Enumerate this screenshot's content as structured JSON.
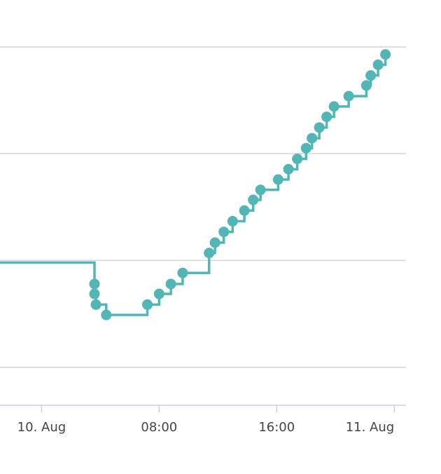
{
  "chart_data": {
    "type": "line",
    "step": true,
    "markers": true,
    "legend": "none",
    "grid": "horizontal",
    "color": "#52b6b6",
    "x_ticks": [
      {
        "hour": 0,
        "label": "10. Aug"
      },
      {
        "hour": 8,
        "label": "08:00"
      },
      {
        "hour": 16,
        "label": "16:00"
      },
      {
        "hour": 24,
        "label": "11. Aug"
      }
    ],
    "xlim": [
      -2.83,
      24.8
    ],
    "ylim": [
      -10.65,
      89.9
    ],
    "grid_y": [
      0,
      30,
      60,
      89.9
    ],
    "start": {
      "hour": -2.83,
      "y": 29.4
    },
    "series": [
      {
        "points": [
          {
            "x": 3.6,
            "y": 23.4
          },
          {
            "x": 3.6,
            "y": 20.6
          },
          {
            "x": 3.7,
            "y": 17.6
          },
          {
            "x": 4.4,
            "y": 14.7
          },
          {
            "x": 7.2,
            "y": 17.6
          },
          {
            "x": 8.0,
            "y": 20.6
          },
          {
            "x": 8.8,
            "y": 23.4
          },
          {
            "x": 9.6,
            "y": 26.5
          },
          {
            "x": 11.4,
            "y": 32.1
          },
          {
            "x": 11.8,
            "y": 35.0
          },
          {
            "x": 12.4,
            "y": 38.0
          },
          {
            "x": 13.0,
            "y": 41.0
          },
          {
            "x": 13.8,
            "y": 44.0
          },
          {
            "x": 14.4,
            "y": 47.0
          },
          {
            "x": 14.9,
            "y": 49.8
          },
          {
            "x": 16.1,
            "y": 52.7
          },
          {
            "x": 16.8,
            "y": 55.6
          },
          {
            "x": 17.4,
            "y": 58.5
          },
          {
            "x": 18.0,
            "y": 61.5
          },
          {
            "x": 18.4,
            "y": 64.3
          },
          {
            "x": 18.9,
            "y": 67.3
          },
          {
            "x": 19.4,
            "y": 70.3
          },
          {
            "x": 19.9,
            "y": 73.2
          },
          {
            "x": 20.9,
            "y": 76.1
          },
          {
            "x": 22.1,
            "y": 79.1
          },
          {
            "x": 22.4,
            "y": 81.9
          },
          {
            "x": 22.9,
            "y": 84.9
          },
          {
            "x": 23.4,
            "y": 87.8
          }
        ]
      }
    ]
  }
}
